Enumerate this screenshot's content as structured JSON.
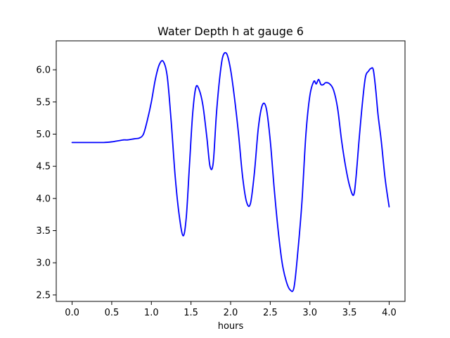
{
  "chart_data": {
    "type": "line",
    "title": "Water Depth h at gauge 6",
    "xlabel": "hours",
    "ylabel": "",
    "xlim": [
      -0.2,
      4.2
    ],
    "ylim": [
      2.4,
      6.45
    ],
    "xticks": [
      0.0,
      0.5,
      1.0,
      1.5,
      2.0,
      2.5,
      3.0,
      3.5,
      4.0
    ],
    "xtick_labels": [
      "0.0",
      "0.5",
      "1.0",
      "1.5",
      "2.0",
      "2.5",
      "3.0",
      "3.5",
      "4.0"
    ],
    "yticks": [
      2.5,
      3.0,
      3.5,
      4.0,
      4.5,
      5.0,
      5.5,
      6.0
    ],
    "ytick_labels": [
      "2.5",
      "3.0",
      "3.5",
      "4.0",
      "4.5",
      "5.0",
      "5.5",
      "6.0"
    ],
    "grid": false,
    "series": [
      {
        "color": "#0000ff",
        "x": [
          0.0,
          0.1,
          0.2,
          0.3,
          0.4,
          0.5,
          0.55,
          0.6,
          0.65,
          0.7,
          0.75,
          0.8,
          0.85,
          0.9,
          0.95,
          1.0,
          1.05,
          1.1,
          1.15,
          1.2,
          1.25,
          1.3,
          1.35,
          1.4,
          1.44,
          1.48,
          1.52,
          1.56,
          1.6,
          1.65,
          1.7,
          1.74,
          1.78,
          1.82,
          1.86,
          1.9,
          1.95,
          2.0,
          2.05,
          2.1,
          2.15,
          2.2,
          2.25,
          2.3,
          2.35,
          2.4,
          2.45,
          2.5,
          2.55,
          2.6,
          2.65,
          2.7,
          2.75,
          2.8,
          2.85,
          2.9,
          2.95,
          3.0,
          3.05,
          3.08,
          3.11,
          3.14,
          3.17,
          3.2,
          3.25,
          3.3,
          3.35,
          3.4,
          3.45,
          3.5,
          3.55,
          3.58,
          3.62,
          3.66,
          3.7,
          3.74,
          3.77,
          3.8,
          3.83,
          3.86,
          3.9,
          3.95,
          4.0
        ],
        "y": [
          4.87,
          4.87,
          4.87,
          4.87,
          4.87,
          4.88,
          4.89,
          4.9,
          4.91,
          4.91,
          4.92,
          4.93,
          4.94,
          5.0,
          5.22,
          5.5,
          5.85,
          6.08,
          6.13,
          5.9,
          5.2,
          4.35,
          3.75,
          3.42,
          3.7,
          4.5,
          5.3,
          5.72,
          5.7,
          5.45,
          4.95,
          4.5,
          4.55,
          5.3,
          5.85,
          6.2,
          6.25,
          6.0,
          5.55,
          5.0,
          4.35,
          3.95,
          3.92,
          4.4,
          5.1,
          5.45,
          5.4,
          4.9,
          4.15,
          3.5,
          3.0,
          2.72,
          2.58,
          2.62,
          3.2,
          3.95,
          5.0,
          5.6,
          5.82,
          5.78,
          5.85,
          5.77,
          5.77,
          5.8,
          5.78,
          5.68,
          5.4,
          4.9,
          4.5,
          4.2,
          4.05,
          4.3,
          4.9,
          5.45,
          5.88,
          5.98,
          6.02,
          6.0,
          5.7,
          5.3,
          4.9,
          4.3,
          3.87
        ]
      }
    ]
  }
}
